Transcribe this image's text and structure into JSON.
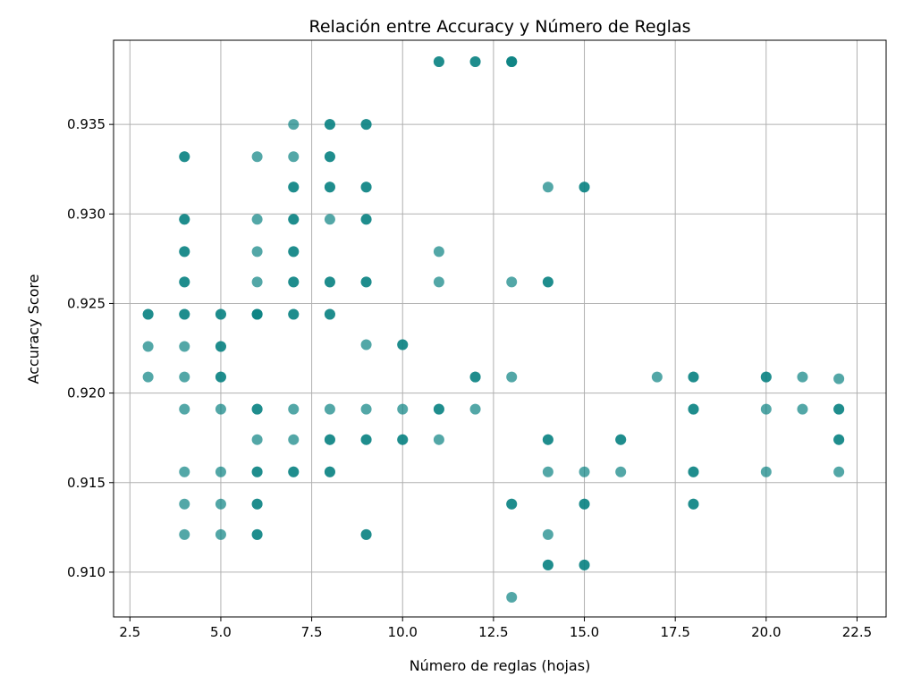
{
  "chart_data": {
    "type": "scatter",
    "title": "Relación entre Accuracy y Número de Reglas",
    "xlabel": "Número de reglas (hojas)",
    "ylabel": "Accuracy Score",
    "xlim": [
      2.05,
      23.3
    ],
    "ylim": [
      0.9075,
      0.9397
    ],
    "xticks": [
      2.5,
      5.0,
      7.5,
      10.0,
      12.5,
      15.0,
      17.5,
      20.0,
      22.5
    ],
    "xtick_labels": [
      "2.5",
      "5.0",
      "7.5",
      "10.0",
      "12.5",
      "15.0",
      "17.5",
      "20.0",
      "22.5"
    ],
    "yticks": [
      0.91,
      0.915,
      0.92,
      0.925,
      0.93,
      0.935
    ],
    "ytick_labels": [
      "0.910",
      "0.915",
      "0.920",
      "0.925",
      "0.930",
      "0.935"
    ],
    "grid": true,
    "marker_color": "#0a8282",
    "marker_alpha": 0.7,
    "points": [
      [
        3,
        0.9244
      ],
      [
        3,
        0.9244
      ],
      [
        3,
        0.9226
      ],
      [
        3,
        0.9209
      ],
      [
        4,
        0.9332
      ],
      [
        4,
        0.9332
      ],
      [
        4,
        0.9297
      ],
      [
        4,
        0.9297
      ],
      [
        4,
        0.9279
      ],
      [
        4,
        0.9279
      ],
      [
        4,
        0.9262
      ],
      [
        4,
        0.9262
      ],
      [
        4,
        0.9244
      ],
      [
        4,
        0.9244
      ],
      [
        4,
        0.9226
      ],
      [
        4,
        0.9209
      ],
      [
        4,
        0.9191
      ],
      [
        4,
        0.9156
      ],
      [
        4,
        0.9138
      ],
      [
        4,
        0.9121
      ],
      [
        5,
        0.9244
      ],
      [
        5,
        0.9244
      ],
      [
        5,
        0.9226
      ],
      [
        5,
        0.9226
      ],
      [
        5,
        0.9209
      ],
      [
        5,
        0.9209
      ],
      [
        5,
        0.9191
      ],
      [
        5,
        0.9156
      ],
      [
        5,
        0.9138
      ],
      [
        5,
        0.9121
      ],
      [
        6,
        0.9332
      ],
      [
        6,
        0.9297
      ],
      [
        6,
        0.9279
      ],
      [
        6,
        0.9262
      ],
      [
        6,
        0.9244
      ],
      [
        6,
        0.9244
      ],
      [
        6,
        0.9244
      ],
      [
        6,
        0.9191
      ],
      [
        6,
        0.9191
      ],
      [
        6,
        0.9174
      ],
      [
        6,
        0.9156
      ],
      [
        6,
        0.9156
      ],
      [
        6,
        0.9138
      ],
      [
        6,
        0.9138
      ],
      [
        6,
        0.9121
      ],
      [
        6,
        0.9121
      ],
      [
        7,
        0.935
      ],
      [
        7,
        0.9332
      ],
      [
        7,
        0.9315
      ],
      [
        7,
        0.9315
      ],
      [
        7,
        0.9297
      ],
      [
        7,
        0.9297
      ],
      [
        7,
        0.9279
      ],
      [
        7,
        0.9279
      ],
      [
        7,
        0.9262
      ],
      [
        7,
        0.9262
      ],
      [
        7,
        0.9244
      ],
      [
        7,
        0.9244
      ],
      [
        7,
        0.9191
      ],
      [
        7,
        0.9174
      ],
      [
        7,
        0.9156
      ],
      [
        7,
        0.9156
      ],
      [
        8,
        0.935
      ],
      [
        8,
        0.935
      ],
      [
        8,
        0.9332
      ],
      [
        8,
        0.9332
      ],
      [
        8,
        0.9315
      ],
      [
        8,
        0.9315
      ],
      [
        8,
        0.9297
      ],
      [
        8,
        0.9262
      ],
      [
        8,
        0.9262
      ],
      [
        8,
        0.9244
      ],
      [
        8,
        0.9244
      ],
      [
        8,
        0.9191
      ],
      [
        8,
        0.9174
      ],
      [
        8,
        0.9174
      ],
      [
        8,
        0.9156
      ],
      [
        8,
        0.9156
      ],
      [
        9,
        0.935
      ],
      [
        9,
        0.935
      ],
      [
        9,
        0.9315
      ],
      [
        9,
        0.9315
      ],
      [
        9,
        0.9297
      ],
      [
        9,
        0.9297
      ],
      [
        9,
        0.9262
      ],
      [
        9,
        0.9262
      ],
      [
        9,
        0.9227
      ],
      [
        9,
        0.9191
      ],
      [
        9,
        0.9174
      ],
      [
        9,
        0.9174
      ],
      [
        9,
        0.9121
      ],
      [
        9,
        0.9121
      ],
      [
        10,
        0.9227
      ],
      [
        10,
        0.9227
      ],
      [
        10,
        0.9191
      ],
      [
        10,
        0.9174
      ],
      [
        10,
        0.9174
      ],
      [
        11,
        0.9385
      ],
      [
        11,
        0.9385
      ],
      [
        11,
        0.9279
      ],
      [
        11,
        0.9262
      ],
      [
        11,
        0.9191
      ],
      [
        11,
        0.9191
      ],
      [
        11,
        0.9174
      ],
      [
        12,
        0.9385
      ],
      [
        12,
        0.9385
      ],
      [
        12,
        0.9209
      ],
      [
        12,
        0.9209
      ],
      [
        12,
        0.9191
      ],
      [
        13,
        0.9385
      ],
      [
        13,
        0.9385
      ],
      [
        13,
        0.9385
      ],
      [
        13,
        0.9262
      ],
      [
        13,
        0.9209
      ],
      [
        13,
        0.9138
      ],
      [
        13,
        0.9138
      ],
      [
        13,
        0.9086
      ],
      [
        14,
        0.9315
      ],
      [
        14,
        0.9262
      ],
      [
        14,
        0.9262
      ],
      [
        14,
        0.9174
      ],
      [
        14,
        0.9174
      ],
      [
        14,
        0.9156
      ],
      [
        14,
        0.9121
      ],
      [
        14,
        0.9104
      ],
      [
        14,
        0.9104
      ],
      [
        15,
        0.9315
      ],
      [
        15,
        0.9315
      ],
      [
        15,
        0.9156
      ],
      [
        15,
        0.9138
      ],
      [
        15,
        0.9138
      ],
      [
        15,
        0.9104
      ],
      [
        15,
        0.9104
      ],
      [
        16,
        0.9174
      ],
      [
        16,
        0.9174
      ],
      [
        16,
        0.9156
      ],
      [
        17,
        0.9209
      ],
      [
        18,
        0.9209
      ],
      [
        18,
        0.9209
      ],
      [
        18,
        0.9191
      ],
      [
        18,
        0.9191
      ],
      [
        18,
        0.9156
      ],
      [
        18,
        0.9156
      ],
      [
        18,
        0.9138
      ],
      [
        18,
        0.9138
      ],
      [
        20,
        0.9209
      ],
      [
        20,
        0.9209
      ],
      [
        20,
        0.9191
      ],
      [
        20,
        0.9156
      ],
      [
        21,
        0.9209
      ],
      [
        21,
        0.9191
      ],
      [
        22,
        0.9208
      ],
      [
        22,
        0.9191
      ],
      [
        22,
        0.9191
      ],
      [
        22,
        0.9174
      ],
      [
        22,
        0.9174
      ],
      [
        22,
        0.9156
      ]
    ]
  }
}
